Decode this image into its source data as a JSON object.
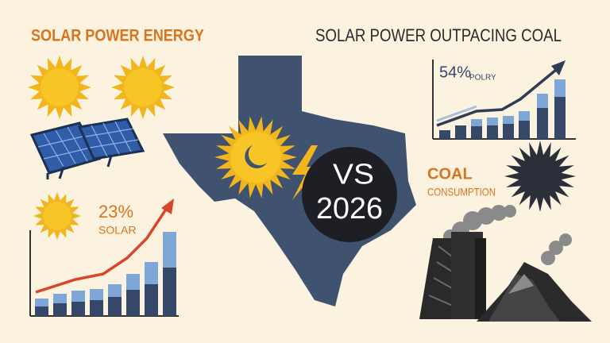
{
  "header": {
    "left_title": "SOLAR POWER ENERGY",
    "right_title": "SOLAR POWER OUTPACING COAL"
  },
  "solar_stat": {
    "value": "23%",
    "label": "SOLAR"
  },
  "growth_chart": {
    "value": "54%",
    "label": "POLRY"
  },
  "center": {
    "top": "VS",
    "bottom": "2026"
  },
  "coal": {
    "title": "COAL",
    "subtitle": "CONSUMPTION"
  }
}
